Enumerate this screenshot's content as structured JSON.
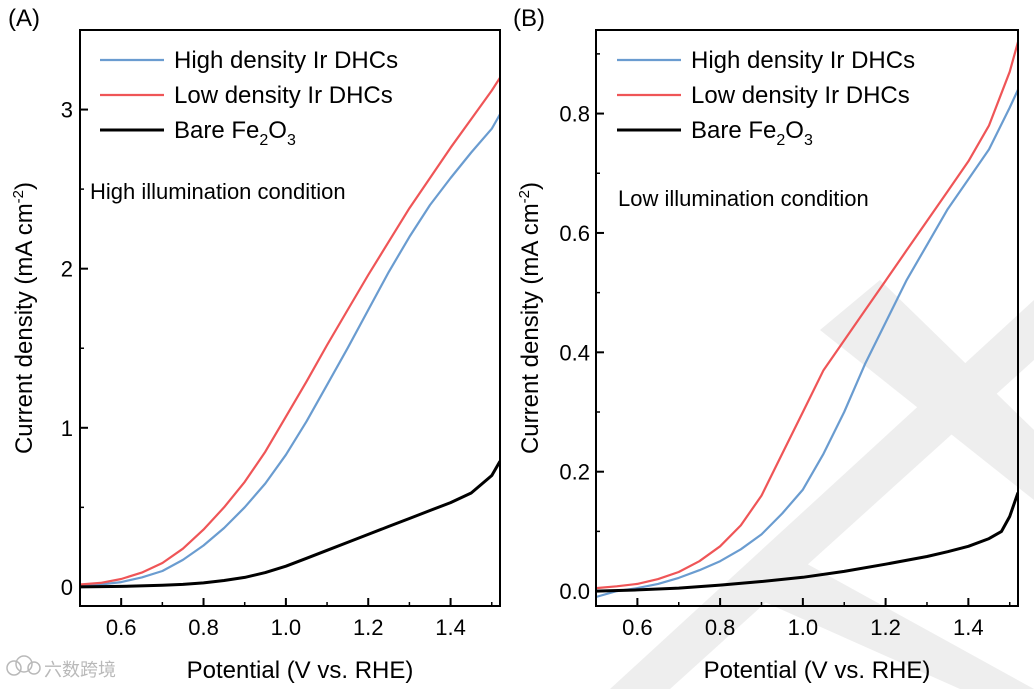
{
  "watermark": {
    "text": "六数跨境",
    "color": "#b9b9b9"
  },
  "colors": {
    "high": "#6a9cd0",
    "low": "#ef5557",
    "bare": "#000000"
  },
  "chart_data": [
    {
      "type": "line",
      "panel_label": "(A)",
      "condition_label": "High illumination condition",
      "xlabel": "Potential (V vs. RHE)",
      "ylabel": {
        "main": "Current density (mA cm",
        "sup": "-2",
        "close": ")"
      },
      "xlim": [
        0.5,
        1.52
      ],
      "ylim": [
        -0.12,
        3.5
      ],
      "xticks": [
        {
          "v": 0.6,
          "label": "0.6"
        },
        {
          "v": 0.8,
          "label": "0.8"
        },
        {
          "v": 1.0,
          "label": "1.0"
        },
        {
          "v": 1.2,
          "label": "1.2"
        },
        {
          "v": 1.4,
          "label": "1.4"
        }
      ],
      "yticks": [
        {
          "v": 0,
          "label": "0"
        },
        {
          "v": 1,
          "label": "1"
        },
        {
          "v": 2,
          "label": "2"
        },
        {
          "v": 3,
          "label": "3"
        }
      ],
      "legend": {
        "position": "top-left"
      },
      "series": [
        {
          "name": "High density Ir DHCs",
          "name_sub": "",
          "name_tail": "",
          "color_key": "high",
          "x": [
            0.5,
            0.55,
            0.6,
            0.65,
            0.7,
            0.75,
            0.8,
            0.85,
            0.9,
            0.95,
            1.0,
            1.05,
            1.1,
            1.15,
            1.2,
            1.25,
            1.3,
            1.35,
            1.4,
            1.45,
            1.5,
            1.52
          ],
          "y": [
            0.01,
            0.015,
            0.03,
            0.06,
            0.1,
            0.17,
            0.26,
            0.37,
            0.5,
            0.65,
            0.83,
            1.04,
            1.27,
            1.5,
            1.74,
            1.98,
            2.2,
            2.4,
            2.57,
            2.73,
            2.88,
            2.97
          ]
        },
        {
          "name": "Low density Ir DHCs",
          "name_sub": "",
          "name_tail": "",
          "color_key": "low",
          "x": [
            0.5,
            0.55,
            0.6,
            0.65,
            0.7,
            0.75,
            0.8,
            0.85,
            0.9,
            0.95,
            1.0,
            1.05,
            1.1,
            1.15,
            1.2,
            1.25,
            1.3,
            1.35,
            1.4,
            1.45,
            1.5,
            1.52
          ],
          "y": [
            0.015,
            0.025,
            0.05,
            0.09,
            0.15,
            0.24,
            0.36,
            0.5,
            0.66,
            0.85,
            1.07,
            1.29,
            1.52,
            1.74,
            1.96,
            2.17,
            2.38,
            2.57,
            2.76,
            2.94,
            3.12,
            3.2
          ]
        },
        {
          "name": "Bare Fe",
          "name_sub": "2",
          "name_tail": "O",
          "name_sub2": "3",
          "color_key": "bare",
          "x": [
            0.5,
            0.6,
            0.7,
            0.75,
            0.8,
            0.85,
            0.9,
            0.95,
            1.0,
            1.05,
            1.1,
            1.15,
            1.2,
            1.25,
            1.3,
            1.35,
            1.4,
            1.45,
            1.5,
            1.52
          ],
          "y": [
            0.0,
            0.003,
            0.01,
            0.016,
            0.025,
            0.04,
            0.06,
            0.09,
            0.13,
            0.18,
            0.23,
            0.28,
            0.33,
            0.38,
            0.43,
            0.48,
            0.53,
            0.59,
            0.7,
            0.79
          ]
        }
      ]
    },
    {
      "type": "line",
      "panel_label": "(B)",
      "condition_label": "Low illumination condition",
      "xlabel": "Potential (V vs. RHE)",
      "ylabel": {
        "main": "Current density (mA cm",
        "sup": "-2",
        "close": ")"
      },
      "xlim": [
        0.5,
        1.52
      ],
      "ylim": [
        -0.025,
        0.94
      ],
      "xticks": [
        {
          "v": 0.6,
          "label": "0.6"
        },
        {
          "v": 0.8,
          "label": "0.8"
        },
        {
          "v": 1.0,
          "label": "1.0"
        },
        {
          "v": 1.2,
          "label": "1.2"
        },
        {
          "v": 1.4,
          "label": "1.4"
        }
      ],
      "yticks": [
        {
          "v": 0.0,
          "label": "0.0"
        },
        {
          "v": 0.2,
          "label": "0.2"
        },
        {
          "v": 0.4,
          "label": "0.4"
        },
        {
          "v": 0.6,
          "label": "0.6"
        },
        {
          "v": 0.8,
          "label": "0.8"
        }
      ],
      "legend": {
        "position": "top-left"
      },
      "series": [
        {
          "name": "High density Ir DHCs",
          "name_sub": "",
          "name_tail": "",
          "color_key": "high",
          "x": [
            0.5,
            0.55,
            0.6,
            0.65,
            0.7,
            0.75,
            0.8,
            0.85,
            0.9,
            0.95,
            1.0,
            1.05,
            1.1,
            1.15,
            1.2,
            1.25,
            1.3,
            1.35,
            1.4,
            1.45,
            1.5,
            1.52
          ],
          "y": [
            -0.01,
            0.0,
            0.005,
            0.012,
            0.022,
            0.035,
            0.05,
            0.07,
            0.095,
            0.13,
            0.17,
            0.23,
            0.3,
            0.38,
            0.45,
            0.52,
            0.58,
            0.64,
            0.69,
            0.74,
            0.81,
            0.84
          ]
        },
        {
          "name": "Low density Ir DHCs",
          "name_sub": "",
          "name_tail": "",
          "color_key": "low",
          "x": [
            0.5,
            0.55,
            0.6,
            0.65,
            0.7,
            0.75,
            0.8,
            0.85,
            0.9,
            0.95,
            1.0,
            1.05,
            1.1,
            1.15,
            1.2,
            1.25,
            1.3,
            1.35,
            1.4,
            1.45,
            1.5,
            1.52
          ],
          "y": [
            0.005,
            0.008,
            0.012,
            0.02,
            0.032,
            0.05,
            0.075,
            0.11,
            0.16,
            0.23,
            0.3,
            0.37,
            0.42,
            0.47,
            0.52,
            0.57,
            0.62,
            0.67,
            0.72,
            0.78,
            0.87,
            0.92
          ]
        },
        {
          "name": "Bare Fe",
          "name_sub": "2",
          "name_tail": "O",
          "name_sub2": "3",
          "color_key": "bare",
          "x": [
            0.5,
            0.6,
            0.7,
            0.8,
            0.9,
            1.0,
            1.1,
            1.2,
            1.3,
            1.35,
            1.4,
            1.45,
            1.48,
            1.5,
            1.52
          ],
          "y": [
            0.0,
            0.002,
            0.005,
            0.01,
            0.016,
            0.023,
            0.033,
            0.045,
            0.058,
            0.066,
            0.075,
            0.088,
            0.1,
            0.125,
            0.165
          ]
        }
      ]
    }
  ]
}
